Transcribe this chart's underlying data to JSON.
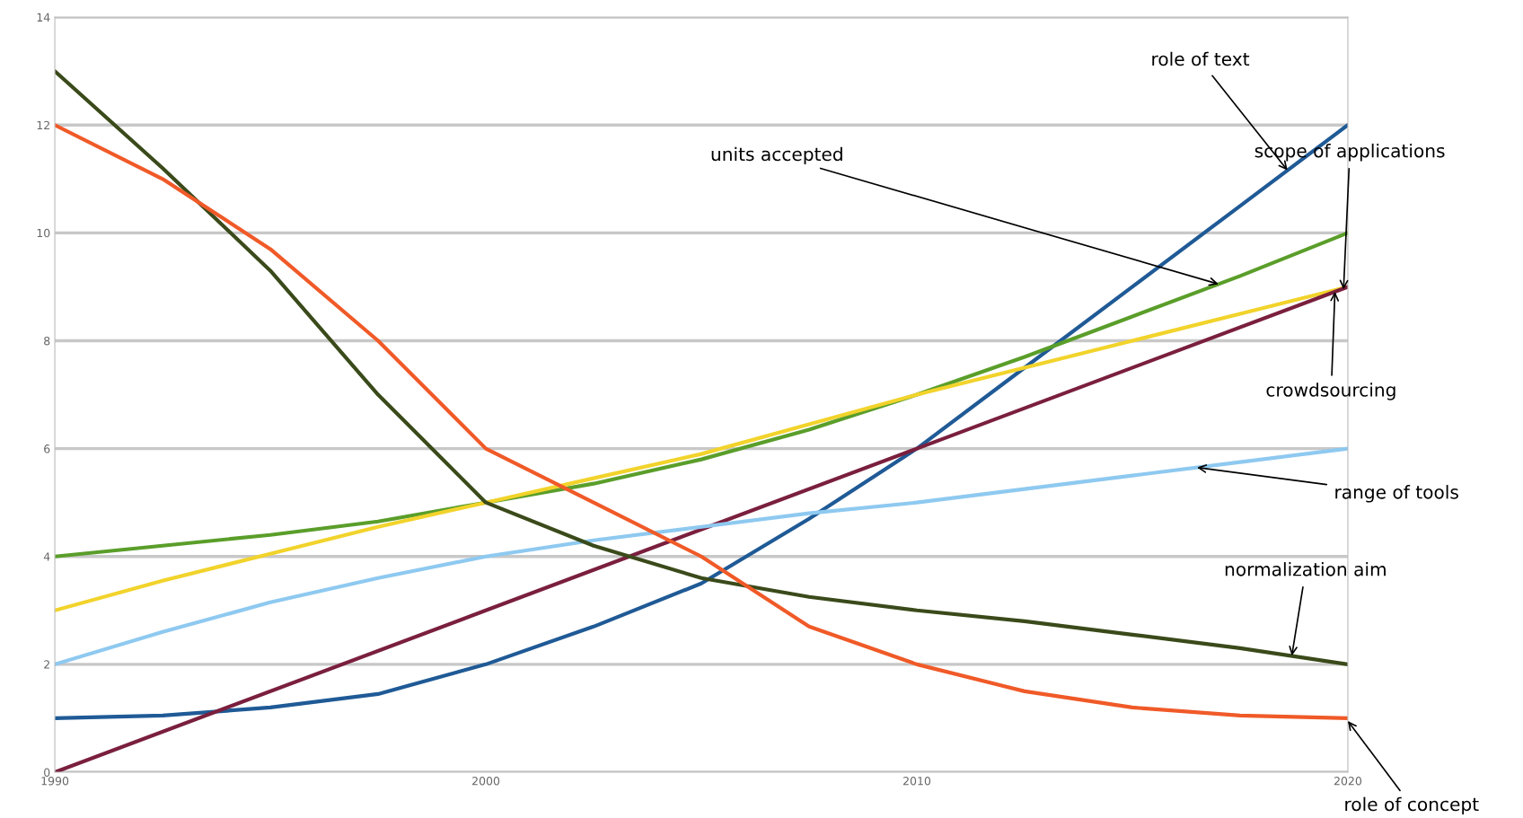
{
  "chart_data": {
    "type": "line",
    "x": [
      1990,
      1992.5,
      1995,
      1997.5,
      2000,
      2002.5,
      2005,
      2007.5,
      2010,
      2012.5,
      2015,
      2017.5,
      2020
    ],
    "series": [
      {
        "color": "#1f5a96",
        "values": [
          1,
          1.05,
          1.2,
          1.45,
          2,
          2.7,
          3.5,
          4.7,
          6,
          7.5,
          9,
          10.5,
          12
        ]
      },
      {
        "color": "#5a9e2a",
        "values": [
          4,
          4.2,
          4.4,
          4.65,
          5,
          5.35,
          5.8,
          6.35,
          7,
          7.7,
          8.45,
          9.2,
          10
        ]
      },
      {
        "color": "#f2d32b",
        "values": [
          3,
          3.55,
          4.05,
          4.55,
          5,
          5.45,
          5.9,
          6.45,
          7,
          7.5,
          8,
          8.5,
          9
        ]
      },
      {
        "color": "#7a1f3d",
        "x": [
          1990,
          2000,
          2010,
          2020
        ],
        "values": [
          0,
          3,
          6,
          9
        ]
      },
      {
        "color": "#8ec9f0",
        "values": [
          2,
          2.6,
          3.15,
          3.6,
          4,
          4.3,
          4.55,
          4.8,
          5,
          5.25,
          5.5,
          5.75,
          6
        ]
      },
      {
        "color": "#3a4a1a",
        "values": [
          13,
          11.2,
          9.3,
          7.0,
          5.0,
          4.2,
          3.6,
          3.25,
          3.0,
          2.8,
          2.55,
          2.3,
          2
        ]
      },
      {
        "color": "#f05a28",
        "values": [
          12,
          11.0,
          9.7,
          8.0,
          6,
          5.0,
          4.0,
          2.7,
          2.0,
          1.5,
          1.2,
          1.05,
          1
        ]
      }
    ],
    "annotations": [
      {
        "text": "role of text",
        "x": 2018.6,
        "y": 11.16
      },
      {
        "text": "units accepted",
        "x": 2017.0,
        "y": 9.05
      },
      {
        "text": "scope of applications",
        "x": 2019.9,
        "y": 8.95
      },
      {
        "text": "crowdsourcing",
        "x": 2019.7,
        "y": 8.91
      },
      {
        "text": "range of tools",
        "x": 2016.5,
        "y": 5.65
      },
      {
        "text": "normalization aim",
        "x": 2018.7,
        "y": 2.16
      },
      {
        "text": "role of concept",
        "x": 2020,
        "y": 0.95
      }
    ],
    "xlim": [
      1990,
      2020
    ],
    "xticks": [
      1990,
      2000,
      2010,
      2020
    ],
    "ylim": [
      0,
      14
    ],
    "yticks": [
      0,
      2,
      4,
      6,
      8,
      10,
      12,
      14
    ],
    "grid": "y",
    "legend": false,
    "marker": "none",
    "line_style": "solid"
  }
}
